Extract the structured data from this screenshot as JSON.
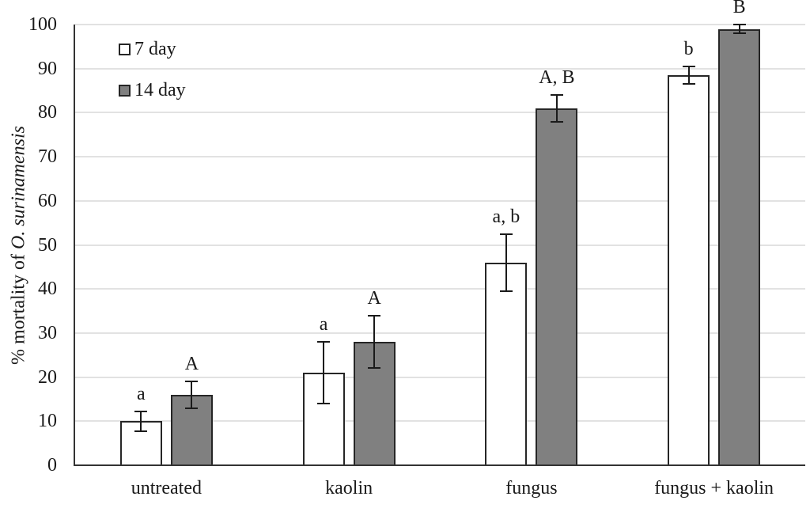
{
  "chart_data": {
    "type": "bar",
    "title": "",
    "categories": [
      "untreated",
      "kaolin",
      "fungus",
      "fungus + kaolin"
    ],
    "series": [
      {
        "name": "7 day",
        "fill": "#ffffff",
        "values": [
          10,
          21,
          46,
          88.5
        ],
        "errors": [
          2.2,
          7,
          6.5,
          2
        ],
        "sig_labels": [
          "a",
          "a",
          "a, b",
          "b"
        ]
      },
      {
        "name": "14 day",
        "fill": "#808080",
        "values": [
          16,
          28,
          81,
          99
        ],
        "errors": [
          3,
          6,
          3,
          1
        ],
        "sig_labels": [
          "A",
          "A",
          "A, B",
          "B"
        ]
      }
    ],
    "ylabel_prefix": "% mortality of ",
    "ylabel_species": "O. surinamensis",
    "xlabel": "",
    "ylim": [
      0,
      100
    ],
    "yticks": [
      0,
      10,
      20,
      30,
      40,
      50,
      60,
      70,
      80,
      90,
      100
    ],
    "grid": true,
    "legend_position": "top-left-inside",
    "colors": {
      "bar_border": "#262626",
      "gridline": "#e2e2e2",
      "axis": "#333333",
      "error_bar": "#1a1a1a",
      "text": "#1a1a1a"
    }
  }
}
